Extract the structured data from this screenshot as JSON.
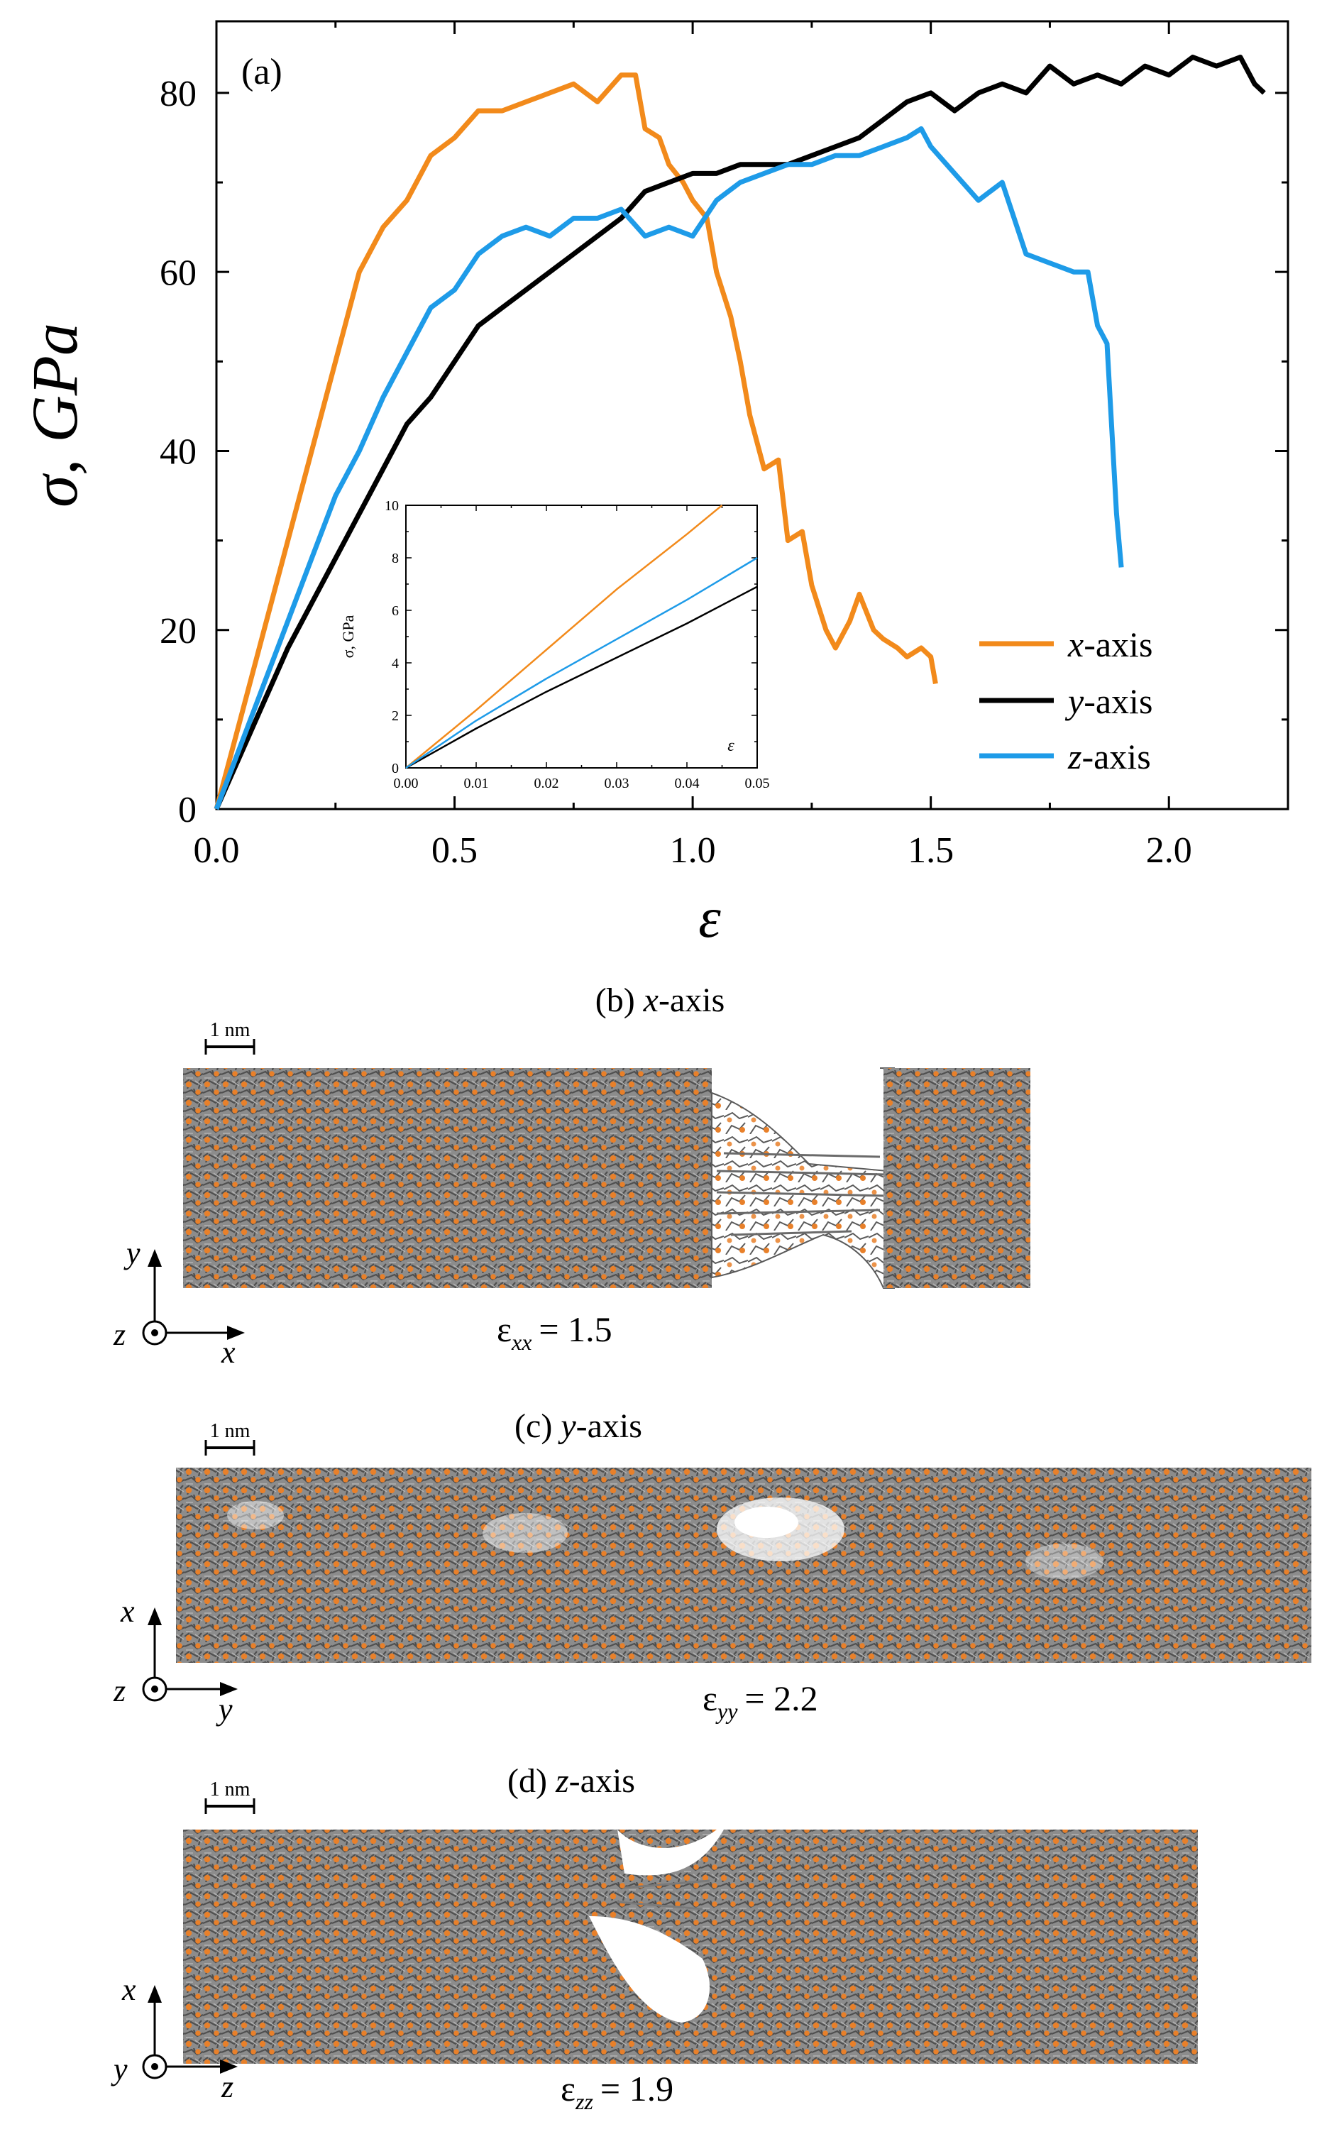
{
  "chart_data": [
    {
      "type": "line",
      "panel": "(a)",
      "xlabel": "ε",
      "ylabel": "σ, GPa",
      "xlim": [
        0,
        2.25
      ],
      "ylim": [
        0,
        88
      ],
      "xticks": [
        0.0,
        0.5,
        1.0,
        1.5,
        2.0
      ],
      "xtick_labels": [
        "0.0",
        "0.5",
        "1.0",
        "1.5",
        "2.0"
      ],
      "yticks": [
        0,
        20,
        40,
        60,
        80
      ],
      "ytick_labels": [
        "0",
        "20",
        "40",
        "60",
        "80"
      ],
      "legend_position": "bottom-right",
      "series": [
        {
          "name": "x-axis",
          "legend_prefix": "x",
          "legend_suffix": "-axis",
          "color": "#f28a1b",
          "x": [
            0,
            0.05,
            0.1,
            0.15,
            0.2,
            0.25,
            0.3,
            0.35,
            0.4,
            0.45,
            0.5,
            0.55,
            0.6,
            0.65,
            0.7,
            0.75,
            0.8,
            0.85,
            0.88,
            0.9,
            0.93,
            0.95,
            0.98,
            1.0,
            1.03,
            1.05,
            1.08,
            1.1,
            1.12,
            1.15,
            1.18,
            1.2,
            1.23,
            1.25,
            1.28,
            1.3,
            1.33,
            1.35,
            1.38,
            1.4,
            1.43,
            1.45,
            1.48,
            1.5,
            1.51
          ],
          "y": [
            0,
            10,
            20,
            30,
            40,
            50,
            60,
            65,
            68,
            73,
            75,
            78,
            78,
            79,
            80,
            81,
            79,
            82,
            82,
            76,
            75,
            72,
            70,
            68,
            66,
            60,
            55,
            50,
            44,
            38,
            39,
            30,
            31,
            25,
            20,
            18,
            21,
            24,
            20,
            19,
            18,
            17,
            18,
            17,
            14
          ]
        },
        {
          "name": "y-axis",
          "legend_prefix": "y",
          "legend_suffix": "-axis",
          "color": "#000000",
          "x": [
            0,
            0.05,
            0.1,
            0.15,
            0.2,
            0.25,
            0.3,
            0.35,
            0.4,
            0.45,
            0.5,
            0.55,
            0.6,
            0.65,
            0.7,
            0.75,
            0.8,
            0.85,
            0.9,
            0.95,
            1.0,
            1.05,
            1.1,
            1.15,
            1.2,
            1.25,
            1.3,
            1.35,
            1.4,
            1.45,
            1.5,
            1.55,
            1.6,
            1.65,
            1.7,
            1.75,
            1.8,
            1.85,
            1.9,
            1.95,
            2.0,
            2.05,
            2.1,
            2.15,
            2.18,
            2.2
          ],
          "y": [
            0,
            6,
            12,
            18,
            23,
            28,
            33,
            38,
            43,
            46,
            50,
            54,
            56,
            58,
            60,
            62,
            64,
            66,
            69,
            70,
            71,
            71,
            72,
            72,
            72,
            73,
            74,
            75,
            77,
            79,
            80,
            78,
            80,
            81,
            80,
            83,
            81,
            82,
            81,
            83,
            82,
            84,
            83,
            84,
            81,
            80
          ]
        },
        {
          "name": "z-axis",
          "legend_prefix": "z",
          "legend_suffix": "-axis",
          "color": "#1e9be8",
          "x": [
            0,
            0.05,
            0.1,
            0.15,
            0.2,
            0.25,
            0.3,
            0.35,
            0.4,
            0.45,
            0.5,
            0.55,
            0.6,
            0.65,
            0.7,
            0.75,
            0.8,
            0.85,
            0.9,
            0.95,
            1.0,
            1.05,
            1.1,
            1.15,
            1.2,
            1.25,
            1.3,
            1.35,
            1.4,
            1.45,
            1.48,
            1.5,
            1.55,
            1.6,
            1.65,
            1.7,
            1.75,
            1.8,
            1.83,
            1.85,
            1.87,
            1.89,
            1.9
          ],
          "y": [
            0,
            7,
            14,
            21,
            28,
            35,
            40,
            46,
            51,
            56,
            58,
            62,
            64,
            65,
            64,
            66,
            66,
            67,
            64,
            65,
            64,
            68,
            70,
            71,
            72,
            72,
            73,
            73,
            74,
            75,
            76,
            74,
            71,
            68,
            70,
            62,
            61,
            60,
            60,
            54,
            52,
            33,
            27
          ]
        }
      ],
      "annotations": [
        "(a)"
      ]
    },
    {
      "type": "line",
      "panel": "inset",
      "xlabel": "ε",
      "ylabel": "σ, GPa",
      "xlim": [
        0,
        0.05
      ],
      "ylim": [
        0,
        10
      ],
      "xticks": [
        0.0,
        0.01,
        0.02,
        0.03,
        0.04,
        0.05
      ],
      "xtick_labels": [
        "0.00",
        "0.01",
        "0.02",
        "0.03",
        "0.04",
        "0.05"
      ],
      "yticks": [
        0,
        2,
        4,
        6,
        8,
        10
      ],
      "ytick_labels": [
        "0",
        "2",
        "4",
        "6",
        "8",
        "10"
      ],
      "series": [
        {
          "name": "x-axis",
          "color": "#f28a1b",
          "x": [
            0,
            0.01,
            0.02,
            0.03,
            0.04,
            0.045
          ],
          "y": [
            0,
            2.2,
            4.5,
            6.8,
            8.9,
            10
          ]
        },
        {
          "name": "y-axis",
          "color": "#000000",
          "x": [
            0,
            0.01,
            0.02,
            0.03,
            0.04,
            0.05
          ],
          "y": [
            0,
            1.5,
            2.9,
            4.2,
            5.5,
            6.9
          ]
        },
        {
          "name": "z-axis",
          "color": "#1e9be8",
          "x": [
            0,
            0.01,
            0.02,
            0.03,
            0.04,
            0.05
          ],
          "y": [
            0,
            1.8,
            3.4,
            4.9,
            6.4,
            8.0
          ]
        }
      ]
    }
  ],
  "snapshots": [
    {
      "key": "b",
      "title_prefix": "(b) ",
      "title_axis": "x",
      "title_suffix": "-axis",
      "scale_label": "1 nm",
      "vert_axis": "y",
      "horiz_axis": "x",
      "out_axis": "z",
      "strain_symbol": "ε",
      "strain_sub": "xx",
      "strain_value": "= 1.5"
    },
    {
      "key": "c",
      "title_prefix": "(c) ",
      "title_axis": "y",
      "title_suffix": "-axis",
      "scale_label": "1 nm",
      "vert_axis": "x",
      "horiz_axis": "y",
      "out_axis": "z",
      "strain_symbol": "ε",
      "strain_sub": "yy",
      "strain_value": "= 2.2"
    },
    {
      "key": "d",
      "title_prefix": "(d) ",
      "title_axis": "z",
      "title_suffix": "-axis",
      "scale_label": "1 nm",
      "vert_axis": "x",
      "horiz_axis": "z",
      "out_axis": "y",
      "strain_symbol": "ε",
      "strain_sub": "zz",
      "strain_value": "= 1.9"
    }
  ],
  "colors": {
    "atom_orange": "#e8802a",
    "bond_gray": "#6e6e6e",
    "frame": "#000000"
  }
}
